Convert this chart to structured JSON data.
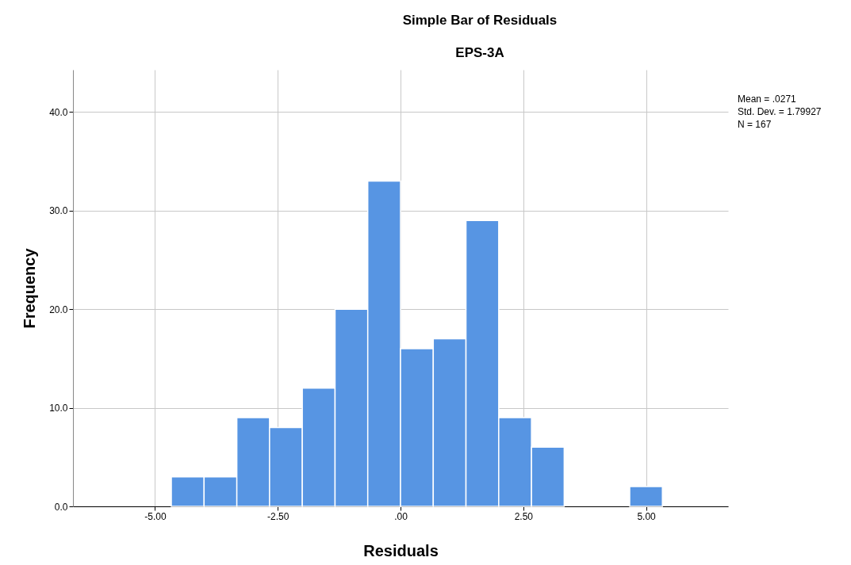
{
  "chart_data": {
    "type": "histogram",
    "title": "Simple Bar of Residuals",
    "subtitle": "EPS-3A",
    "xlabel": "Residuals",
    "ylabel": "Frequency",
    "bins": [
      -4.667,
      -4.0,
      -3.333,
      -2.667,
      -2.0,
      -1.333,
      -0.667,
      0,
      0.667,
      1.333,
      2.0,
      2.667,
      3.333,
      4.0,
      4.667,
      5.333
    ],
    "values": [
      3,
      3,
      9,
      8,
      12,
      20,
      33,
      16,
      17,
      29,
      9,
      6,
      0,
      0,
      2
    ],
    "color": "#5795e3",
    "xlim": [
      -6.67,
      6.67
    ],
    "xticks": [
      {
        "value": -5,
        "label": "-5.00"
      },
      {
        "value": -2.5,
        "label": "-2.50"
      },
      {
        "value": 0,
        "label": ".00"
      },
      {
        "value": 2.5,
        "label": "2.50"
      },
      {
        "value": 5,
        "label": "5.00"
      }
    ],
    "ylim": [
      0,
      44.3
    ],
    "yticks": [
      {
        "value": 0,
        "label": "0.0"
      },
      {
        "value": 10,
        "label": "10.0"
      },
      {
        "value": 20,
        "label": "20.0"
      },
      {
        "value": 30,
        "label": "30.0"
      },
      {
        "value": 40,
        "label": "40.0"
      }
    ],
    "grid": true,
    "annotations": [
      "Mean = .0271",
      "Std. Dev. = 1.79927",
      "N = 167"
    ]
  }
}
